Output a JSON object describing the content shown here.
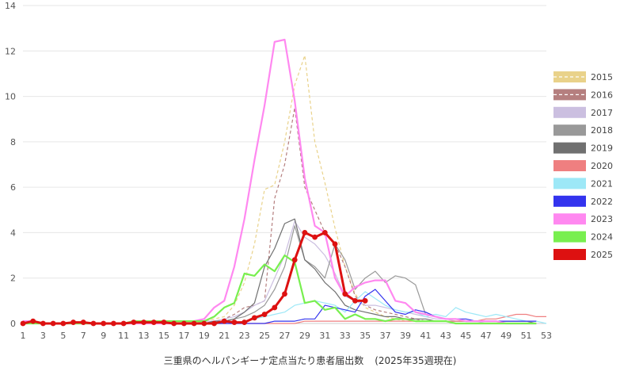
{
  "chart_data": {
    "type": "line",
    "title": "三重県のヘルパンギーナ定点当たり患者届出数",
    "subtitle": "(2025年35週現在)",
    "xlabel": "",
    "ylabel": "",
    "xlim": [
      1,
      53
    ],
    "ylim": [
      0,
      14
    ],
    "y_ticks": [
      0,
      2,
      4,
      6,
      8,
      10,
      12,
      14
    ],
    "x_ticks": [
      1,
      3,
      5,
      7,
      9,
      11,
      13,
      15,
      17,
      19,
      21,
      23,
      25,
      27,
      29,
      31,
      33,
      35,
      37,
      39,
      41,
      43,
      45,
      47,
      49,
      51,
      53
    ],
    "grid": true,
    "legend_position": "right",
    "series": [
      {
        "name": "2015",
        "color": "#e9d28a",
        "style": "dashed",
        "values": [
          0,
          0,
          0,
          0,
          0,
          0,
          0,
          0,
          0,
          0,
          0,
          0,
          0,
          0,
          0,
          0,
          0,
          0.1,
          0.1,
          0.2,
          0.3,
          0.8,
          1.8,
          3.5,
          5.9,
          6.1,
          8,
          10.5,
          11.8,
          8,
          6.2,
          4.2,
          2.5,
          1.3,
          0.7,
          0.5,
          0.3,
          0.2,
          0.1,
          0.1,
          0.1,
          0.1,
          0.1,
          0,
          0,
          0,
          0,
          0,
          0,
          0,
          0,
          0
        ]
      },
      {
        "name": "2016",
        "color": "#b57f7f",
        "style": "dashed",
        "values": [
          0,
          0,
          0,
          0,
          0,
          0,
          0,
          0,
          0,
          0,
          0,
          0,
          0,
          0,
          0,
          0,
          0,
          0,
          0,
          0.1,
          0.2,
          0.4,
          0.7,
          0.8,
          1,
          5.5,
          7,
          9.5,
          6,
          5,
          4,
          3.5,
          2.5,
          1.2,
          0.8,
          0.6,
          0.5,
          0.4,
          0.3,
          0.2,
          0.1,
          0.1,
          0.1,
          0,
          0,
          0,
          0,
          0,
          0,
          0,
          0,
          0
        ]
      },
      {
        "name": "2017",
        "color": "#cbbfe0",
        "style": "solid",
        "values": [
          0,
          0,
          0,
          0,
          0,
          0,
          0,
          0,
          0,
          0,
          0,
          0,
          0,
          0,
          0,
          0,
          0,
          0,
          0.1,
          0.1,
          0.2,
          0.3,
          0.5,
          0.8,
          1,
          2,
          3,
          4.5,
          3.8,
          3.5,
          3,
          2.2,
          1.2,
          1,
          0.8,
          0.8,
          0.7,
          0.6,
          0.5,
          0.4,
          0.3,
          0.2,
          0.2,
          0.1,
          0.1,
          0.1,
          0,
          0,
          0,
          0,
          0,
          0
        ]
      },
      {
        "name": "2018",
        "color": "#999999",
        "style": "solid",
        "values": [
          0,
          0,
          0,
          0,
          0,
          0,
          0,
          0,
          0,
          0,
          0,
          0,
          0,
          0,
          0,
          0,
          0,
          0,
          0,
          0.1,
          0.1,
          0.2,
          0.3,
          0.5,
          0.8,
          1.5,
          2.5,
          4.3,
          2.8,
          2.5,
          2,
          3.5,
          2.8,
          1.5,
          2,
          2.3,
          1.8,
          2.1,
          2,
          1.7,
          0.4,
          0.3,
          0.2,
          0.2,
          0.1,
          0.1,
          0.1,
          0.1,
          0,
          0,
          0,
          0
        ]
      },
      {
        "name": "2019",
        "color": "#707070",
        "style": "solid",
        "values": [
          0,
          0,
          0,
          0,
          0,
          0,
          0,
          0,
          0,
          0,
          0,
          0,
          0,
          0,
          0,
          0,
          0,
          0,
          0,
          0.1,
          0.1,
          0.2,
          0.5,
          0.9,
          2.5,
          3.3,
          4.4,
          4.6,
          2.8,
          2.4,
          1.8,
          1.4,
          0.8,
          0.6,
          0.5,
          0.4,
          0.3,
          0.3,
          0.2,
          0.2,
          0.2,
          0.1,
          0.1,
          0.1,
          0.1,
          0.1,
          0.1,
          0.1,
          0.1,
          0.1,
          0.1,
          0
        ]
      },
      {
        "name": "2020",
        "color": "#ef7f80",
        "style": "solid",
        "values": [
          0,
          0,
          0,
          0,
          0,
          0,
          0,
          0,
          0,
          0,
          0,
          0,
          0,
          0,
          0,
          0,
          0,
          0,
          0,
          0,
          0,
          0,
          0,
          0,
          0,
          0,
          0,
          0,
          0.1,
          0.1,
          0.1,
          0.1,
          0.1,
          0.1,
          0.1,
          0.1,
          0.1,
          0.1,
          0.1,
          0.1,
          0.1,
          0.1,
          0.1,
          0.1,
          0.1,
          0.1,
          0.2,
          0.2,
          0.3,
          0.4,
          0.4,
          0.3,
          0.3
        ]
      },
      {
        "name": "2021",
        "color": "#9de8f7",
        "style": "solid",
        "values": [
          0,
          0,
          0,
          0,
          0,
          0,
          0,
          0,
          0,
          0,
          0,
          0,
          0,
          0,
          0,
          0,
          0,
          0,
          0,
          0,
          0,
          0,
          0.1,
          0.2,
          0.3,
          0.4,
          0.5,
          0.8,
          0.9,
          1,
          0.9,
          0.8,
          0.5,
          1,
          1.4,
          1.1,
          0.8,
          0.6,
          0.5,
          0.5,
          0.3,
          0.4,
          0.3,
          0.7,
          0.5,
          0.4,
          0.3,
          0.4,
          0.3,
          0.2,
          0.1,
          0.1,
          0
        ]
      },
      {
        "name": "2022",
        "color": "#3333ee",
        "style": "solid",
        "values": [
          0,
          0,
          0,
          0,
          0,
          0,
          0,
          0,
          0,
          0,
          0,
          0,
          0,
          0,
          0,
          0,
          0,
          0,
          0,
          0,
          0,
          0,
          0,
          0,
          0,
          0.1,
          0.1,
          0.1,
          0.2,
          0.2,
          0.8,
          0.7,
          0.6,
          0.5,
          1.2,
          1.5,
          1,
          0.5,
          0.4,
          0.6,
          0.5,
          0.3,
          0.2,
          0.2,
          0.2,
          0.1,
          0.1,
          0.1,
          0.1,
          0.1,
          0.1,
          0.1
        ]
      },
      {
        "name": "2023",
        "color": "#ff88f0",
        "style": "solid",
        "values": [
          0.1,
          0.1,
          0,
          0,
          0,
          0,
          0,
          0,
          0,
          0,
          0,
          0,
          0,
          0,
          0,
          0,
          0,
          0.1,
          0.2,
          0.7,
          1,
          2.5,
          4.6,
          7.2,
          9.6,
          12.4,
          12.5,
          9.8,
          6.4,
          4.3,
          4,
          2,
          1.2,
          1.6,
          1.8,
          1.9,
          1.9,
          1,
          0.9,
          0.5,
          0.4,
          0.3,
          0.2,
          0.2,
          0.1,
          0.1,
          0.1,
          0.1,
          0,
          0,
          0,
          0
        ]
      },
      {
        "name": "2024",
        "color": "#78ef4f",
        "style": "solid",
        "values": [
          0,
          0,
          0,
          0,
          0,
          0,
          0,
          0,
          0,
          0,
          0,
          0.1,
          0.1,
          0.1,
          0.1,
          0.1,
          0.1,
          0.1,
          0.1,
          0.3,
          0.7,
          0.9,
          2.2,
          2.1,
          2.6,
          2.3,
          3,
          2.7,
          0.9,
          1,
          0.6,
          0.7,
          0.2,
          0.4,
          0.2,
          0.2,
          0.1,
          0.2,
          0.2,
          0.1,
          0.1,
          0.1,
          0.1,
          0,
          0,
          0,
          0,
          0,
          0,
          0,
          0,
          0
        ]
      },
      {
        "name": "2025",
        "color": "#dd1111",
        "style": "bold-markers",
        "values": [
          0,
          0.1,
          0,
          0,
          0,
          0.05,
          0.05,
          0,
          0,
          0,
          0,
          0.05,
          0.05,
          0.05,
          0.05,
          0,
          0,
          0,
          0,
          0,
          0.1,
          0.05,
          0.05,
          0.25,
          0.4,
          0.7,
          1.3,
          2.8,
          4,
          3.8,
          4,
          3.5,
          1.3,
          1,
          1
        ]
      }
    ]
  }
}
